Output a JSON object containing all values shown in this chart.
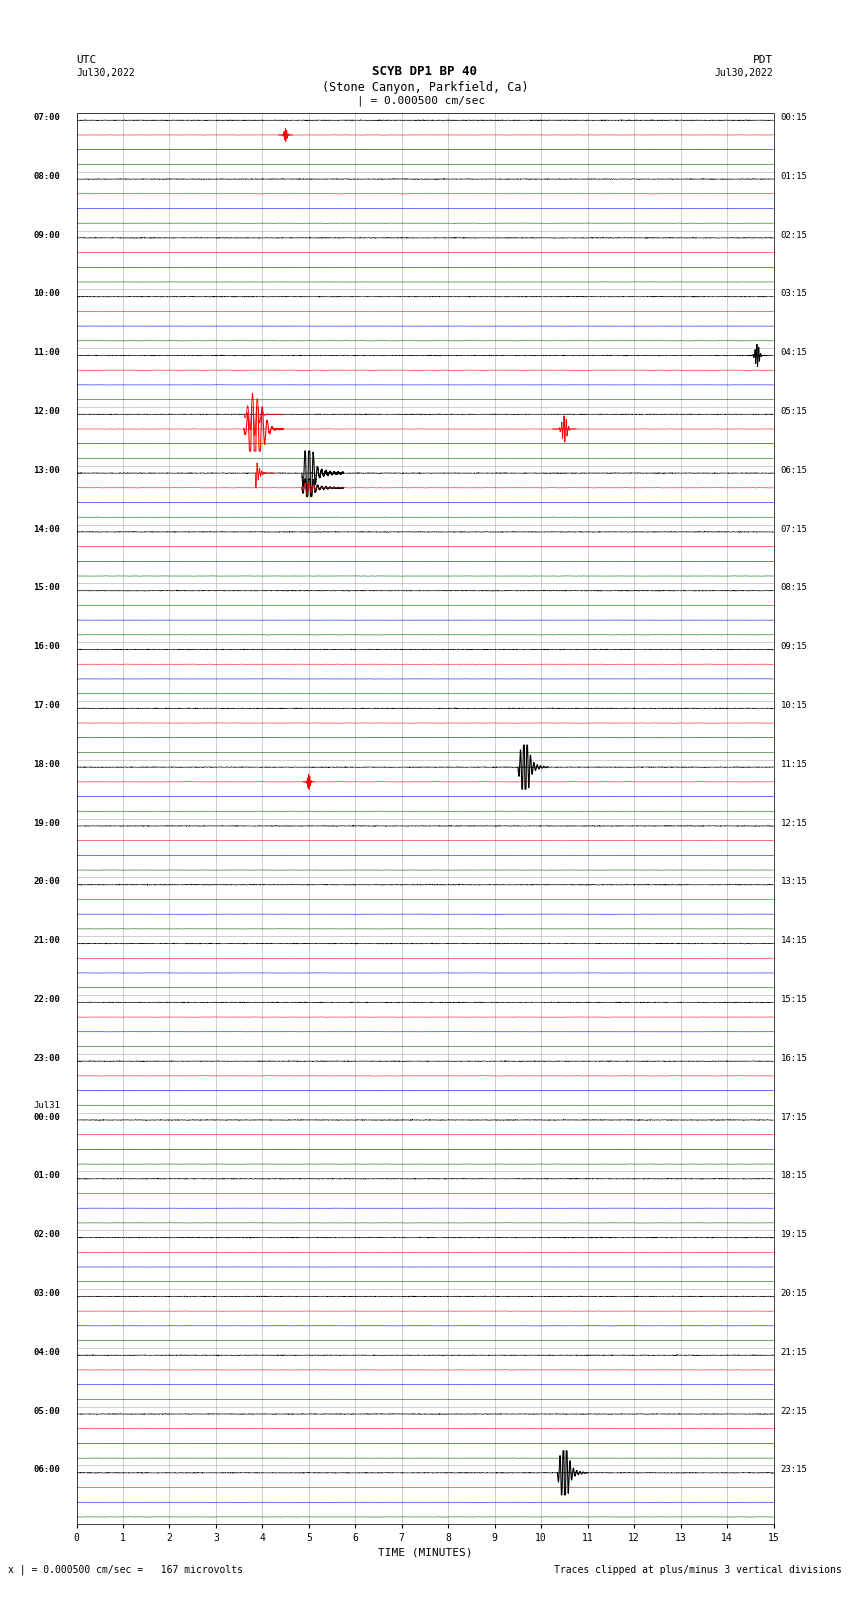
{
  "title_line1": "SCYB DP1 BP 40",
  "title_line2": "(Stone Canyon, Parkfield, Ca)",
  "scale_text": "| = 0.000500 cm/sec",
  "xlabel": "TIME (MINUTES)",
  "footer_left": "x | = 0.000500 cm/sec =   167 microvolts",
  "footer_right": "Traces clipped at plus/minus 3 vertical divisions",
  "x_min": 0,
  "x_max": 15,
  "x_ticks": [
    0,
    1,
    2,
    3,
    4,
    5,
    6,
    7,
    8,
    9,
    10,
    11,
    12,
    13,
    14,
    15
  ],
  "background_color": "#ffffff",
  "trace_colors": [
    "#000000",
    "#ff0000",
    "#0000ff",
    "#006400"
  ],
  "num_traces_per_row": 4,
  "utc_times": [
    "07:00",
    "08:00",
    "09:00",
    "10:00",
    "11:00",
    "12:00",
    "13:00",
    "14:00",
    "15:00",
    "16:00",
    "17:00",
    "18:00",
    "19:00",
    "20:00",
    "21:00",
    "22:00",
    "23:00",
    "Jul31\n00:00",
    "01:00",
    "02:00",
    "03:00",
    "04:00",
    "05:00",
    "06:00"
  ],
  "pdt_times": [
    "00:15",
    "01:15",
    "02:15",
    "03:15",
    "04:15",
    "05:15",
    "06:15",
    "07:15",
    "08:15",
    "09:15",
    "10:15",
    "11:15",
    "12:15",
    "13:15",
    "14:15",
    "15:15",
    "16:15",
    "17:15",
    "18:15",
    "19:15",
    "20:15",
    "21:15",
    "22:15",
    "23:15"
  ],
  "num_rows": 24,
  "noise_amplitude": 0.012,
  "grid_color": "#aaaaaa",
  "grid_linewidth": 0.4,
  "trace_linewidth": 0.4,
  "figsize": [
    8.5,
    16.13
  ],
  "dpi": 100
}
